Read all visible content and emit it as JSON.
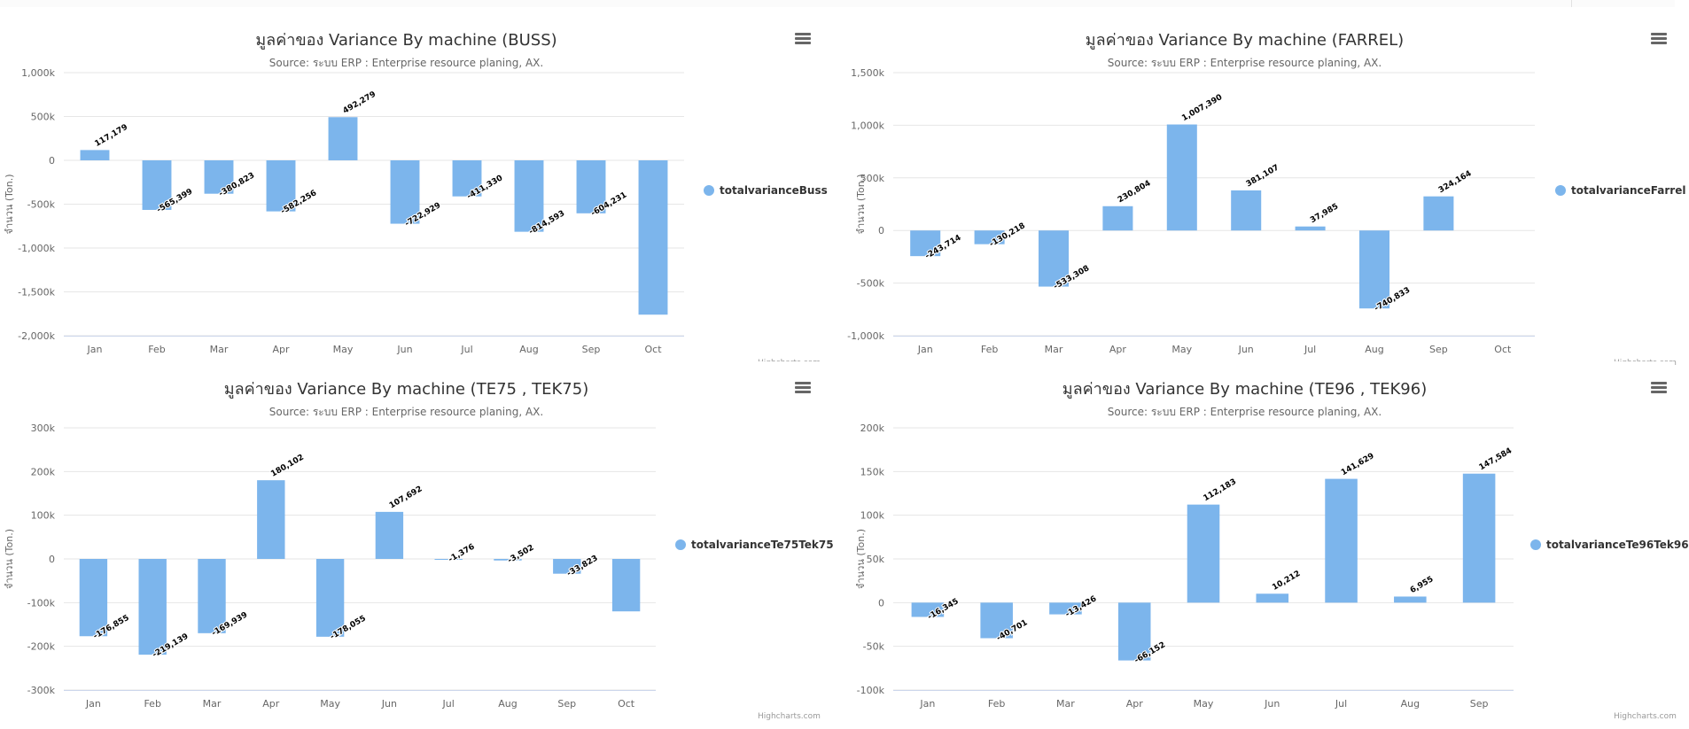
{
  "ui": {
    "credits": "Highcharts.com",
    "bar_color": "#7cb5ec"
  },
  "chart_data": [
    {
      "type": "bar",
      "title": "มูลค่าของ Variance By machine (BUSS)",
      "subtitle": "Source: ระบบ ERP : Enterprise resource planing, AX.",
      "ylabel": "จำนวน (Ton.)",
      "ylim": [
        -2000000,
        1000000
      ],
      "yticks": [
        1000000,
        500000,
        0,
        -500000,
        -1000000,
        -1500000,
        -2000000
      ],
      "ytick_labels": [
        "1,000k",
        "500k",
        "0",
        "-500k",
        "-1,000k",
        "-1,500k",
        "-2,000k"
      ],
      "categories": [
        "Jan",
        "Feb",
        "Mar",
        "Apr",
        "May",
        "Jun",
        "Jul",
        "Aug",
        "Sep",
        "Oct"
      ],
      "series": [
        {
          "name": "totalvarianceBuss",
          "values": [
            117179,
            -565399,
            -380823,
            -582256,
            492279,
            -722929,
            -411330,
            -814593,
            -604231,
            -1760000
          ],
          "labels": [
            "117,179",
            "-565,399",
            "-380,823",
            "-582,256",
            "492,279",
            "-722,929",
            "-411,330",
            "-814,593",
            "-604,231",
            ""
          ]
        }
      ],
      "legend": "right"
    },
    {
      "type": "bar",
      "title": "มูลค่าของ Variance By machine (FARREL)",
      "subtitle": "Source: ระบบ ERP : Enterprise resource planing, AX.",
      "ylabel": "จำนวน (Ton.)",
      "ylim": [
        -1000000,
        1500000
      ],
      "yticks": [
        1500000,
        1000000,
        500000,
        0,
        -500000,
        -1000000
      ],
      "ytick_labels": [
        "1,500k",
        "1,000k",
        "500k",
        "0",
        "-500k",
        "-1,000k"
      ],
      "categories": [
        "Jan",
        "Feb",
        "Mar",
        "Apr",
        "May",
        "Jun",
        "Jul",
        "Aug",
        "Sep",
        "Oct"
      ],
      "series": [
        {
          "name": "totalvarianceFarrel",
          "values": [
            -243714,
            -130218,
            -533308,
            230804,
            1007390,
            381107,
            37985,
            -740833,
            324164,
            null
          ],
          "labels": [
            "-243,714",
            "-130,218",
            "-533,308",
            "230,804",
            "1,007,390",
            "381,107",
            "37,985",
            "-740,833",
            "324,164",
            ""
          ]
        }
      ],
      "legend": "right"
    },
    {
      "type": "bar",
      "title": "มูลค่าของ Variance By machine (TE75 , TEK75)",
      "subtitle": "Source: ระบบ ERP : Enterprise resource planing, AX.",
      "ylabel": "จำนวน (Ton.)",
      "ylim": [
        -300000,
        300000
      ],
      "yticks": [
        300000,
        200000,
        100000,
        0,
        -100000,
        -200000,
        -300000
      ],
      "ytick_labels": [
        "300k",
        "200k",
        "100k",
        "0",
        "-100k",
        "-200k",
        "-300k"
      ],
      "categories": [
        "Jan",
        "Feb",
        "Mar",
        "Apr",
        "May",
        "Jun",
        "Jul",
        "Aug",
        "Sep",
        "Oct"
      ],
      "series": [
        {
          "name": "totalvarianceTe75Tek75",
          "values": [
            -176855,
            -219139,
            -169939,
            180102,
            -178055,
            107692,
            -1376,
            -3502,
            -33823,
            -120000
          ],
          "labels": [
            "-176,855",
            "-219,139",
            "-169,939",
            "180,102",
            "-178,055",
            "107,692",
            "-1,376",
            "-3,502",
            "-33,823",
            ""
          ]
        }
      ],
      "legend": "right"
    },
    {
      "type": "bar",
      "title": "มูลค่าของ Variance By machine (TE96 , TEK96)",
      "subtitle": "Source: ระบบ ERP : Enterprise resource planing, AX.",
      "ylabel": "จำนวน (Ton.)",
      "ylim": [
        -100000,
        200000
      ],
      "yticks": [
        200000,
        150000,
        100000,
        50000,
        0,
        -50000,
        -100000
      ],
      "ytick_labels": [
        "200k",
        "150k",
        "100k",
        "50k",
        "0",
        "-50k",
        "-100k"
      ],
      "categories": [
        "Jan",
        "Feb",
        "Mar",
        "Apr",
        "May",
        "Jun",
        "Jul",
        "Aug",
        "Sep"
      ],
      "series": [
        {
          "name": "totalvarianceTe96Tek96",
          "values": [
            -16345,
            -40701,
            -13426,
            -66152,
            112183,
            10212,
            141629,
            6955,
            147584
          ],
          "labels": [
            "-16,345",
            "-40,701",
            "-13,426",
            "-66,152",
            "112,183",
            "10,212",
            "141,629",
            "6,955",
            "147,584"
          ]
        }
      ],
      "legend": "right"
    }
  ]
}
